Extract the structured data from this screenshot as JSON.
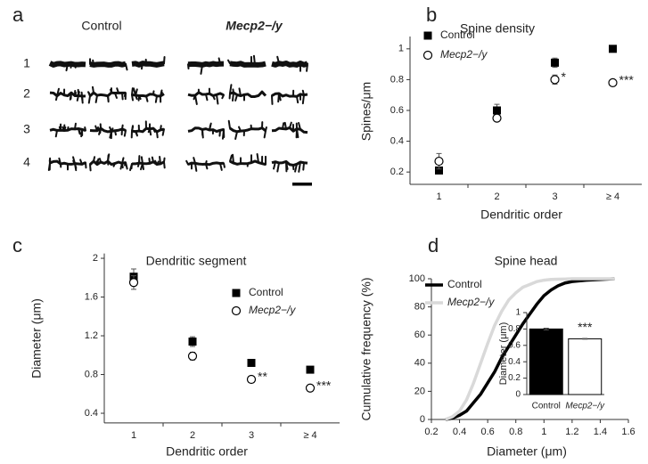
{
  "panel_a": {
    "panel": "a",
    "columns": [
      "Control",
      "Mecp2−/y"
    ],
    "rows": [
      "1",
      "2",
      "3",
      "4"
    ]
  },
  "chart_data": [
    {
      "type": "scatter",
      "panel": "b",
      "title": "Spine density",
      "ylabel": "Spines/μm",
      "xlabel": "Dendritic order",
      "categories": [
        "1",
        "2",
        "3",
        "≥ 4"
      ],
      "ylim": [
        0.12,
        1.08
      ],
      "yticks": [
        0.2,
        0.4,
        0.6,
        0.8,
        1
      ],
      "series": [
        {
          "name": "Control",
          "color": "#000000",
          "marker": "square",
          "values": [
            0.21,
            0.6,
            0.91,
            1.0
          ],
          "errors": [
            0.01,
            0.04,
            0.03,
            0.01
          ]
        },
        {
          "name": "Mecp2−/y",
          "color": "#000000",
          "marker": "circle",
          "values": [
            0.27,
            0.55,
            0.8,
            0.78
          ],
          "errors": [
            0.05,
            0.02,
            0.03,
            0.01
          ]
        }
      ],
      "annotations": [
        {
          "text": "*",
          "category": "3"
        },
        {
          "text": "***",
          "category": "≥ 4"
        }
      ]
    },
    {
      "type": "scatter",
      "panel": "c",
      "title": "Dendritic segment",
      "ylabel": "Diameter (μm)",
      "xlabel": "Dendritic order",
      "categories": [
        "1",
        "2",
        "3",
        "≥ 4"
      ],
      "ylim": [
        0.3,
        2.05
      ],
      "yticks": [
        0.4,
        0.8,
        1.2,
        1.6,
        2
      ],
      "series": [
        {
          "name": "Control",
          "color": "#000000",
          "marker": "square",
          "values": [
            1.81,
            1.14,
            0.92,
            0.85
          ],
          "errors": [
            0.08,
            0.05,
            0.02,
            0.02
          ]
        },
        {
          "name": "Mecp2−/y",
          "color": "#000000",
          "marker": "circle",
          "values": [
            1.75,
            0.99,
            0.75,
            0.66
          ],
          "errors": [
            0.07,
            0.04,
            0.03,
            0.02
          ]
        }
      ],
      "annotations": [
        {
          "text": "**",
          "category": "3"
        },
        {
          "text": "***",
          "category": "≥ 4"
        }
      ]
    },
    {
      "type": "line",
      "panel": "d",
      "title": "Spine head",
      "ylabel": "Cumulative frequency (%)",
      "xlabel": "Diameter (μm)",
      "x": [
        0.3,
        0.35,
        0.4,
        0.45,
        0.5,
        0.55,
        0.6,
        0.65,
        0.7,
        0.75,
        0.8,
        0.85,
        0.9,
        0.95,
        1.0,
        1.05,
        1.1,
        1.15,
        1.2,
        1.3,
        1.5
      ],
      "xlim": [
        0.2,
        1.6
      ],
      "xticks": [
        0.2,
        0.4,
        0.6,
        0.8,
        1,
        1.2,
        1.4,
        1.6
      ],
      "ylim": [
        0,
        100
      ],
      "yticks": [
        0,
        20,
        40,
        60,
        80,
        100
      ],
      "series": [
        {
          "name": "Control",
          "color": "#000000",
          "values": [
            0,
            1,
            3,
            6,
            12,
            18,
            26,
            34,
            44,
            52,
            60,
            68,
            75,
            82,
            88,
            92,
            95,
            97,
            98,
            99,
            100
          ]
        },
        {
          "name": "Mecp2−/y",
          "color": "#d9d9d9",
          "values": [
            0,
            2,
            6,
            14,
            26,
            40,
            54,
            67,
            77,
            85,
            90,
            94,
            96,
            98,
            99,
            99.5,
            99.7,
            99.8,
            100,
            100,
            100
          ]
        }
      ]
    },
    {
      "type": "bar",
      "ylabel": "Diameter (μm)",
      "categories": [
        "Control",
        "Mecp2−/y"
      ],
      "ylim": [
        0,
        1
      ],
      "yticks": [
        0,
        0.2,
        0.4,
        0.6,
        0.8,
        1
      ],
      "values": [
        0.8,
        0.68
      ],
      "errors": [
        0.01,
        0.005
      ],
      "colors": [
        "#000000",
        "#ffffff"
      ],
      "annotations": [
        {
          "text": "***",
          "category": "Mecp2−/y"
        }
      ]
    }
  ]
}
